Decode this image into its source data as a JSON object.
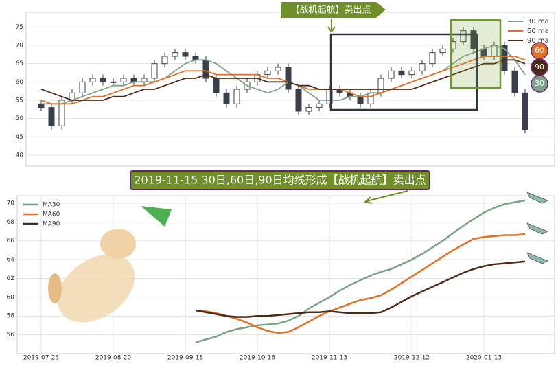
{
  "chart_data": [
    {
      "type": "candlestick",
      "annotation": "【战机起航】卖出点",
      "end_labels": [
        "60",
        "90",
        "30"
      ],
      "open": [
        54,
        53,
        48,
        55,
        57,
        60,
        61,
        60,
        60,
        61,
        60,
        61,
        65,
        67,
        68,
        67,
        66,
        61,
        57,
        54,
        58,
        60,
        62,
        63,
        64,
        58,
        52,
        53,
        54,
        58,
        57,
        56,
        54,
        57,
        61,
        63,
        62,
        63,
        65,
        68,
        69,
        71,
        74,
        69,
        67,
        70,
        63,
        57
      ],
      "high": [
        55,
        54,
        56,
        58,
        61,
        62,
        62,
        61,
        62,
        62,
        62,
        66,
        68,
        69,
        69,
        68,
        67,
        62,
        58,
        59,
        61,
        63,
        64,
        65,
        65,
        59,
        54,
        55,
        59,
        59,
        58,
        57,
        58,
        62,
        64,
        64,
        64,
        66,
        69,
        70,
        72,
        75,
        75,
        70,
        71,
        71,
        64,
        58
      ],
      "low": [
        52,
        47,
        47,
        54,
        56,
        59,
        59,
        59,
        59,
        59,
        59,
        60,
        64,
        66,
        66,
        65,
        60,
        56,
        53,
        53,
        57,
        59,
        61,
        62,
        57,
        51,
        51,
        52,
        53,
        56,
        55,
        53,
        53,
        56,
        60,
        61,
        61,
        62,
        64,
        67,
        68,
        70,
        68,
        66,
        66,
        62,
        56,
        46
      ],
      "close": [
        53,
        48,
        55,
        57,
        60,
        61,
        60,
        60,
        61,
        60,
        61,
        65,
        67,
        68,
        67,
        66,
        61,
        57,
        54,
        58,
        60,
        62,
        63,
        64,
        58,
        52,
        53,
        54,
        58,
        57,
        56,
        54,
        57,
        61,
        63,
        62,
        63,
        65,
        68,
        69,
        71,
        74,
        69,
        67,
        70,
        63,
        57,
        47
      ],
      "candle_color": "#3a3f4b",
      "series": [
        {
          "name": "30 ma",
          "color": "#7fa38a",
          "values": [
            54,
            54,
            54,
            55,
            56,
            57,
            58,
            59,
            59,
            60,
            60,
            60,
            61,
            63,
            65,
            66,
            66,
            65,
            63,
            61,
            59,
            58,
            57,
            58,
            60,
            59,
            57,
            55,
            55,
            55,
            56,
            56,
            57,
            57,
            58,
            59,
            60,
            61,
            62,
            63,
            65,
            67,
            68,
            69,
            70,
            69,
            66,
            62
          ]
        },
        {
          "name": "60 ma",
          "color": "#e07127",
          "values": [
            55,
            54,
            54,
            54,
            55,
            56,
            56,
            57,
            58,
            59,
            59,
            60,
            61,
            62,
            63,
            63,
            63,
            62,
            62,
            62,
            62,
            62,
            61,
            61,
            60,
            59,
            58,
            58,
            58,
            58,
            57,
            56,
            56,
            57,
            58,
            59,
            60,
            61,
            62,
            63,
            64,
            65,
            66,
            67,
            67,
            67,
            67,
            66
          ]
        },
        {
          "name": "90 ma",
          "color": "#4d2a17",
          "values": [
            58,
            57,
            56,
            55,
            55,
            55,
            55,
            56,
            56,
            57,
            58,
            58,
            59,
            60,
            61,
            61,
            62,
            61,
            61,
            61,
            61,
            61,
            60,
            60,
            60,
            59,
            59,
            58,
            58,
            58,
            58,
            58,
            58,
            58,
            58,
            58,
            58,
            59,
            60,
            61,
            62,
            63,
            64,
            65,
            65,
            66,
            66,
            65
          ]
        }
      ],
      "ylim": [
        37,
        79
      ],
      "yticks": [
        40,
        45,
        50,
        55,
        60,
        65,
        70,
        75
      ],
      "grid": true
    },
    {
      "type": "line",
      "title": "2019-11-15 30日,60日,90日均线形成【战机起航】卖出点",
      "categories": [
        "2019-07-23",
        null,
        null,
        null,
        null,
        null,
        null,
        "2019-08-20",
        null,
        null,
        null,
        null,
        null,
        null,
        "2019-09-18",
        null,
        null,
        null,
        null,
        null,
        null,
        "2019-10-16",
        null,
        null,
        null,
        null,
        null,
        null,
        "2019-11-13",
        null,
        null,
        null,
        null,
        null,
        null,
        null,
        "2019-12-12",
        null,
        null,
        null,
        null,
        null,
        null,
        "2020-01-13",
        null,
        null,
        null,
        null
      ],
      "series": [
        {
          "name": "MA30",
          "color": "#7aa386",
          "values": [
            null,
            null,
            null,
            null,
            null,
            null,
            null,
            null,
            null,
            null,
            null,
            null,
            null,
            null,
            null,
            55.2,
            55.5,
            55.8,
            56.3,
            56.6,
            56.8,
            57.0,
            57.1,
            57.2,
            57.5,
            58.0,
            58.8,
            59.4,
            60.0,
            60.7,
            61.3,
            61.8,
            62.3,
            62.7,
            63.0,
            63.5,
            64.0,
            64.6,
            65.3,
            66.0,
            66.8,
            67.6,
            68.3,
            69.0,
            69.5,
            69.9,
            70.1,
            70.3
          ]
        },
        {
          "name": "MA60",
          "color": "#e07127",
          "values": [
            null,
            null,
            null,
            null,
            null,
            null,
            null,
            null,
            null,
            null,
            null,
            null,
            null,
            null,
            null,
            58.6,
            58.5,
            58.3,
            58.0,
            57.7,
            57.3,
            56.8,
            56.4,
            56.2,
            56.3,
            56.8,
            57.4,
            58.0,
            58.5,
            58.9,
            59.3,
            59.7,
            59.9,
            60.2,
            60.8,
            61.5,
            62.2,
            62.9,
            63.6,
            64.3,
            65.0,
            65.6,
            66.2,
            66.4,
            66.5,
            66.6,
            66.6,
            66.7
          ]
        },
        {
          "name": "MA90",
          "color": "#4d2a17",
          "values": [
            null,
            null,
            null,
            null,
            null,
            null,
            null,
            null,
            null,
            null,
            null,
            null,
            null,
            null,
            null,
            58.6,
            58.4,
            58.2,
            58.0,
            57.9,
            57.9,
            58.0,
            58.0,
            58.1,
            58.2,
            58.3,
            58.4,
            58.4,
            58.5,
            58.4,
            58.3,
            58.3,
            58.3,
            58.4,
            58.9,
            59.5,
            60.1,
            60.6,
            61.1,
            61.6,
            62.1,
            62.6,
            63.0,
            63.3,
            63.5,
            63.6,
            63.7,
            63.8
          ]
        }
      ],
      "ylim": [
        54,
        70.8
      ],
      "yticks": [
        56,
        58,
        60,
        62,
        64,
        66,
        68,
        70
      ],
      "grid": true
    }
  ]
}
